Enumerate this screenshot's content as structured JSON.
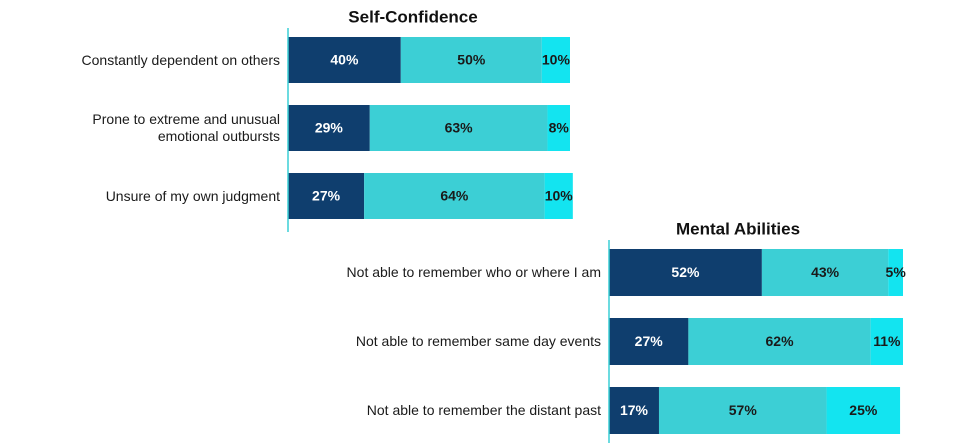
{
  "chart_data": [
    {
      "type": "bar",
      "orientation": "horizontal",
      "stacked": true,
      "title": "Self-Confidence",
      "categories": [
        "Constantly dependent on others",
        "Prone to extreme and unusual emotional outbursts",
        "Unsure of my own judgment"
      ],
      "xlim": [
        0,
        100
      ],
      "series": [
        {
          "color": "#0f3e6e",
          "values": [
            40,
            29,
            27
          ],
          "value_labels": [
            "40%",
            "29%",
            "27%"
          ]
        },
        {
          "color": "#3ccfd5",
          "values": [
            50,
            63,
            64
          ],
          "value_labels": [
            "50%",
            "63%",
            "64%"
          ]
        },
        {
          "color": "#13e4f0",
          "values": [
            10,
            8,
            10
          ],
          "value_labels": [
            "10%",
            "8%",
            "10%"
          ]
        }
      ]
    },
    {
      "type": "bar",
      "orientation": "horizontal",
      "stacked": true,
      "title": "Mental Abilities",
      "categories": [
        "Not able to remember who or where I am",
        "Not able to remember same day events",
        "Not able to remember the distant past"
      ],
      "xlim": [
        0,
        100
      ],
      "series": [
        {
          "color": "#0f3e6e",
          "values": [
            52,
            27,
            17
          ],
          "value_labels": [
            "52%",
            "27%",
            "17%"
          ]
        },
        {
          "color": "#3ccfd5",
          "values": [
            43,
            62,
            57
          ],
          "value_labels": [
            "43%",
            "62%",
            "57%"
          ]
        },
        {
          "color": "#13e4f0",
          "values": [
            5,
            11,
            25
          ],
          "value_labels": [
            "5%",
            "11%",
            "25%"
          ]
        }
      ]
    }
  ]
}
